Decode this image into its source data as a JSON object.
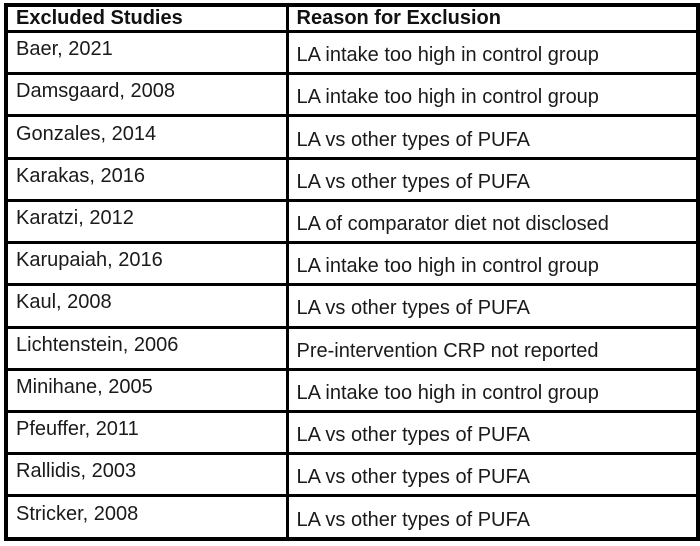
{
  "table": {
    "headers": {
      "study": "Excluded Studies",
      "reason": "Reason for Exclusion"
    },
    "rows": [
      {
        "study": "Baer, 2021",
        "reason": "LA intake too high in control group"
      },
      {
        "study": "Damsgaard, 2008",
        "reason": "LA intake too high in control group"
      },
      {
        "study": "Gonzales, 2014",
        "reason": "LA vs other types of PUFA"
      },
      {
        "study": "Karakas, 2016",
        "reason": "LA vs other types of PUFA"
      },
      {
        "study": "Karatzi, 2012",
        "reason": "LA of comparator diet not disclosed"
      },
      {
        "study": "Karupaiah, 2016",
        "reason": "LA intake too high in control group"
      },
      {
        "study": "Kaul, 2008",
        "reason": "LA vs other types of PUFA"
      },
      {
        "study": "Lichtenstein, 2006",
        "reason": "Pre-intervention CRP not reported"
      },
      {
        "study": "Minihane, 2005",
        "reason": "LA intake too high in control group"
      },
      {
        "study": "Pfeuffer, 2011",
        "reason": "LA vs other types of PUFA"
      },
      {
        "study": "Rallidis, 2003",
        "reason": "LA vs other types of PUFA"
      },
      {
        "study": "Stricker, 2008",
        "reason": "LA vs other types of PUFA"
      }
    ],
    "colors": {
      "border": "#000000",
      "background": "#ffffff",
      "text": "#1a1a1a"
    }
  }
}
